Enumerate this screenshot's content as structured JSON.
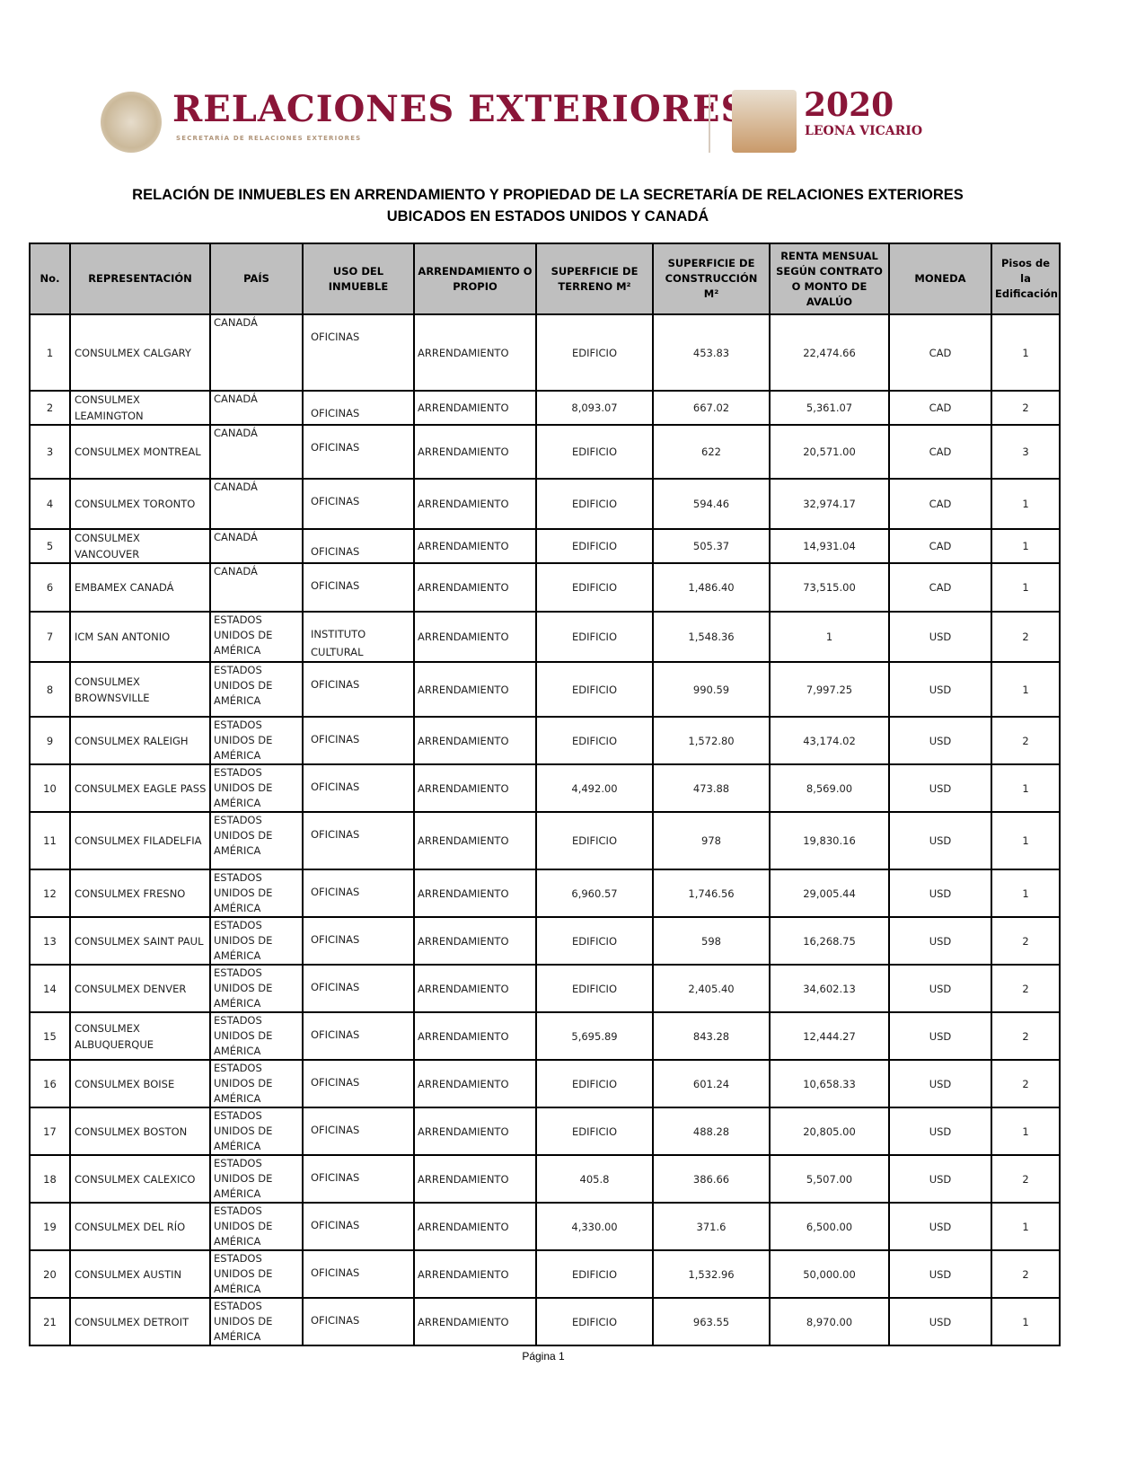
{
  "header": {
    "logo_text": "RELACIONES EXTERIORES",
    "logo_subtitle": "SECRETARÍA DE RELACIONES EXTERIORES",
    "year_logo": "2020",
    "year_logo_name": "LEONA VICARIO"
  },
  "title_line1": "RELACIÓN DE INMUEBLES EN ARRENDAMIENTO Y PROPIEDAD DE LA SECRETARÍA DE RELACIONES EXTERIORES",
  "title_line2": "UBICADOS EN ESTADOS UNIDOS Y CANADÁ",
  "columns": [
    "No.",
    "REPRESENTACIÓN",
    "PAÍS",
    "USO DEL INMUEBLE",
    "ARRENDAMIENTO O PROPIO",
    "SUPERFICIE DE TERRENO M²",
    "SUPERFICIE DE CONSTRUCCIÓN M²",
    "RENTA MENSUAL SEGÚN CONTRATO O MONTO DE AVALÚO",
    "MONEDA",
    "Pisos de la Edificación"
  ],
  "rows": [
    [
      "1",
      "CONSULMEX CALGARY",
      "CANADÁ",
      "OFICINAS",
      "ARRENDAMIENTO",
      "EDIFICIO",
      "453.83",
      "22,474.66",
      "CAD",
      "1"
    ],
    [
      "2",
      "CONSULMEX LEAMINGTON",
      "CANADÁ",
      "OFICINAS",
      "ARRENDAMIENTO",
      "8,093.07",
      "667.02",
      "5,361.07",
      "CAD",
      "2"
    ],
    [
      "3",
      "CONSULMEX MONTREAL",
      "CANADÁ",
      "OFICINAS",
      "ARRENDAMIENTO",
      "EDIFICIO",
      "622",
      "20,571.00",
      "CAD",
      "3"
    ],
    [
      "4",
      "CONSULMEX TORONTO",
      "CANADÁ",
      "OFICINAS",
      "ARRENDAMIENTO",
      "EDIFICIO",
      "594.46",
      "32,974.17",
      "CAD",
      "1"
    ],
    [
      "5",
      "CONSULMEX VANCOUVER",
      "CANADÁ",
      "OFICINAS",
      "ARRENDAMIENTO",
      "EDIFICIO",
      "505.37",
      "14,931.04",
      "CAD",
      "1"
    ],
    [
      "6",
      "EMBAMEX CANADÁ",
      "CANADÁ",
      "OFICINAS",
      "ARRENDAMIENTO",
      "EDIFICIO",
      "1,486.40",
      "73,515.00",
      "CAD",
      "1"
    ],
    [
      "7",
      "ICM SAN ANTONIO",
      "ESTADOS UNIDOS DE AMÉRICA",
      "INSTITUTO CULTURAL",
      "ARRENDAMIENTO",
      "EDIFICIO",
      "1,548.36",
      "1",
      "USD",
      "2"
    ],
    [
      "8",
      "CONSULMEX BROWNSVILLE",
      "ESTADOS UNIDOS DE AMÉRICA",
      "OFICINAS",
      "ARRENDAMIENTO",
      "EDIFICIO",
      "990.59",
      "7,997.25",
      "USD",
      "1"
    ],
    [
      "9",
      "CONSULMEX RALEIGH",
      "ESTADOS UNIDOS DE AMÉRICA",
      "OFICINAS",
      "ARRENDAMIENTO",
      "EDIFICIO",
      "1,572.80",
      "43,174.02",
      "USD",
      "2"
    ],
    [
      "10",
      "CONSULMEX EAGLE PASS",
      "ESTADOS UNIDOS DE AMÉRICA",
      "OFICINAS",
      "ARRENDAMIENTO",
      "4,492.00",
      "473.88",
      "8,569.00",
      "USD",
      "1"
    ],
    [
      "11",
      "CONSULMEX FILADELFIA",
      "ESTADOS UNIDOS DE AMÉRICA",
      "OFICINAS",
      "ARRENDAMIENTO",
      "EDIFICIO",
      "978",
      "19,830.16",
      "USD",
      "1"
    ],
    [
      "12",
      "CONSULMEX FRESNO",
      "ESTADOS UNIDOS DE AMÉRICA",
      "OFICINAS",
      "ARRENDAMIENTO",
      "6,960.57",
      "1,746.56",
      "29,005.44",
      "USD",
      "1"
    ],
    [
      "13",
      "CONSULMEX SAINT PAUL",
      "ESTADOS UNIDOS DE AMÉRICA",
      "OFICINAS",
      "ARRENDAMIENTO",
      "EDIFICIO",
      "598",
      "16,268.75",
      "USD",
      "2"
    ],
    [
      "14",
      "CONSULMEX DENVER",
      "ESTADOS UNIDOS DE AMÉRICA",
      "OFICINAS",
      "ARRENDAMIENTO",
      "EDIFICIO",
      "2,405.40",
      "34,602.13",
      "USD",
      "2"
    ],
    [
      "15",
      "CONSULMEX ALBUQUERQUE",
      "ESTADOS UNIDOS DE AMÉRICA",
      "OFICINAS",
      "ARRENDAMIENTO",
      "5,695.89",
      "843.28",
      "12,444.27",
      "USD",
      "2"
    ],
    [
      "16",
      "CONSULMEX BOISE",
      "ESTADOS UNIDOS DE AMÉRICA",
      "OFICINAS",
      "ARRENDAMIENTO",
      "EDIFICIO",
      "601.24",
      "10,658.33",
      "USD",
      "2"
    ],
    [
      "17",
      "CONSULMEX BOSTON",
      "ESTADOS UNIDOS DE AMÉRICA",
      "OFICINAS",
      "ARRENDAMIENTO",
      "EDIFICIO",
      "488.28",
      "20,805.00",
      "USD",
      "1"
    ],
    [
      "18",
      "CONSULMEX CALEXICO",
      "ESTADOS UNIDOS DE AMÉRICA",
      "OFICINAS",
      "ARRENDAMIENTO",
      "405.8",
      "386.66",
      "5,507.00",
      "USD",
      "2"
    ],
    [
      "19",
      "CONSULMEX DEL RÍO",
      "ESTADOS UNIDOS DE AMÉRICA",
      "OFICINAS",
      "ARRENDAMIENTO",
      "4,330.00",
      "371.6",
      "6,500.00",
      "USD",
      "1"
    ],
    [
      "20",
      "CONSULMEX AUSTIN",
      "ESTADOS UNIDOS DE AMÉRICA",
      "OFICINAS",
      "ARRENDAMIENTO",
      "EDIFICIO",
      "1,532.96",
      "50,000.00",
      "USD",
      "2"
    ],
    [
      "21",
      "CONSULMEX DETROIT",
      "ESTADOS UNIDOS DE AMÉRICA",
      "OFICINAS",
      "ARRENDAMIENTO",
      "EDIFICIO",
      "963.55",
      "8,970.00",
      "USD",
      "1"
    ]
  ],
  "footer": "Página 1"
}
